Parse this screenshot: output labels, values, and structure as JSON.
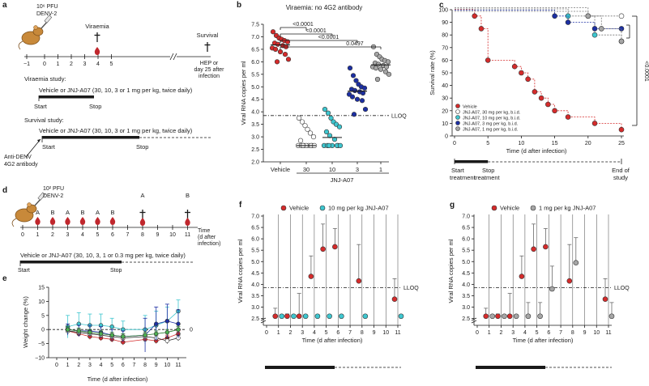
{
  "panel_labels": {
    "a": "a",
    "b": "b",
    "c": "c",
    "d": "d",
    "e": "e",
    "f": "f",
    "g": "g"
  },
  "colors": {
    "vehicle": "#d52b2b",
    "dose30": "#ffffff",
    "dose10": "#3ec6cf",
    "dose3": "#1c2fa3",
    "dose1": "#a6a6a6",
    "mouse": "#c8893a",
    "drop": "#c0272d"
  },
  "panel_a": {
    "inoculum": [
      "10⁶ PFU",
      "DENV-2"
    ],
    "viraemia": "Viraemia",
    "survival": "Survival",
    "hep": [
      "HEP or",
      "day 25 after",
      "infection"
    ],
    "ticks": [
      "−1",
      "0",
      "1",
      "2",
      "3",
      "4",
      "5"
    ],
    "viraemia_study": "Viraemia study:",
    "viraemia_treatment": "Vehicle or JNJ-A07 (30, 10, 3 or 1 mg per kg, twice daily)",
    "survival_study": "Survival study:",
    "survival_treatment": "Vehicle or JNJ-A07 (30, 10, 3 or 1 mg per kg, twice daily)",
    "start": "Start",
    "stop": "Stop",
    "antibody": [
      "Anti-DENV",
      "4G2 antibody"
    ]
  },
  "panel_d": {
    "inoculum": [
      "10² PFU",
      "DENV-2"
    ],
    "schedule": [
      "A",
      "B",
      "A",
      "B",
      "A",
      "B"
    ],
    "late": [
      "A",
      "B"
    ],
    "ticks": [
      "0",
      "1",
      "2",
      "3",
      "4",
      "5",
      "6",
      "7",
      "8",
      "9",
      "10",
      "11"
    ],
    "time_label": [
      "Time",
      "(d after",
      "infection)"
    ],
    "treatment": "Vehicle or JNJ-A07 (30, 10, 3, 1 or 0.3 mg per kg, twice daily)",
    "start": "Start",
    "stop": "Stop"
  },
  "chart_data": [
    {
      "id": "b",
      "type": "scatter",
      "title": "Viraemia: no 4G2 antibody",
      "ylabel": "Viral RNA copies per ml",
      "ylim": [
        2.0,
        7.5
      ],
      "yticks": [
        "2.0",
        "2.5",
        "3.0",
        "3.5",
        "4.0",
        "4.5",
        "5.0",
        "5.5",
        "6.0",
        "6.5",
        "7.0",
        "7.5"
      ],
      "lloq": 3.85,
      "lloq_label": "LLOQ",
      "xlabel": "JNJ-A07",
      "categories": [
        "Vehicle",
        "30",
        "10",
        "3",
        "1"
      ],
      "pvalues": [
        "<0.0001",
        "<0.0001",
        "<0.0001",
        "0.0497"
      ],
      "series": [
        {
          "values": [
            7.2,
            7.05,
            6.95,
            6.9,
            6.85,
            6.8,
            6.75,
            6.7,
            6.65,
            6.6,
            6.55,
            6.5,
            6.4,
            6.3,
            6.1,
            6.0
          ]
        },
        {
          "values": [
            3.75,
            3.6,
            3.45,
            3.3,
            3.15,
            3.0,
            2.85,
            2.65,
            2.65,
            2.65,
            2.65,
            2.65,
            2.65,
            2.65,
            2.65,
            2.65
          ]
        },
        {
          "values": [
            4.1,
            3.95,
            3.75,
            3.6,
            3.5,
            3.4,
            3.2,
            3.05,
            2.9,
            2.65,
            2.65,
            2.65,
            2.65,
            2.65,
            2.65,
            2.65
          ]
        },
        {
          "values": [
            5.75,
            5.45,
            5.25,
            5.1,
            5.0,
            4.95,
            4.9,
            4.85,
            4.8,
            4.75,
            4.7,
            4.6,
            4.5,
            4.45,
            4.1,
            3.9
          ]
        },
        {
          "values": [
            6.6,
            6.3,
            6.2,
            6.1,
            6.05,
            6.0,
            5.95,
            5.9,
            5.85,
            5.8,
            5.8,
            5.75,
            5.7,
            5.6,
            5.5,
            5.3
          ]
        }
      ]
    },
    {
      "id": "c",
      "type": "line",
      "xlabel": "Time (d after infection)",
      "ylabel": "Survival rate (%)",
      "xlim": [
        0,
        25
      ],
      "ylim": [
        0,
        100
      ],
      "xticks": [
        "0",
        "5",
        "10",
        "15",
        "20",
        "25"
      ],
      "yticks": [
        "0",
        "10",
        "20",
        "30",
        "40",
        "50",
        "60",
        "70",
        "80",
        "90",
        "100"
      ],
      "pvalue": "<0.0001",
      "start_label": [
        "Start",
        "treatment"
      ],
      "stop_label": [
        "Stop",
        "treatment"
      ],
      "end_label": [
        "End of",
        "study"
      ],
      "series": [
        {
          "name": "Vehicle",
          "x": [
            0,
            3,
            4,
            5,
            9,
            10,
            11,
            12,
            13,
            14,
            15,
            17,
            21,
            25
          ],
          "y": [
            100,
            95,
            85,
            60,
            55,
            50,
            45,
            35,
            30,
            25,
            20,
            15,
            10,
            5
          ]
        },
        {
          "name": "JNJ-A07, 30 mg per kg, b.i.d.",
          "x": [
            0,
            20,
            25
          ],
          "y": [
            100,
            95,
            95
          ]
        },
        {
          "name": "JNJ-A07, 10 mg per kg, b.i.d.",
          "x": [
            0,
            17,
            21,
            25
          ],
          "y": [
            100,
            95,
            80,
            75
          ]
        },
        {
          "name": "JNJ-A07, 3 mg per kg, b.i.d.",
          "x": [
            0,
            15,
            17,
            21,
            25
          ],
          "y": [
            100,
            95,
            90,
            85,
            85
          ]
        },
        {
          "name": "JNJ-A07, 1 mg per kg, b.i.d.",
          "x": [
            0,
            20,
            22,
            25
          ],
          "y": [
            100,
            95,
            85,
            75
          ]
        }
      ]
    },
    {
      "id": "e",
      "type": "line",
      "xlabel": "Time (d after infection)",
      "ylabel": "Weight change (%)",
      "xlim": [
        0,
        11
      ],
      "ylim": [
        -10,
        15
      ],
      "xticks": [
        "0",
        "1",
        "2",
        "3",
        "4",
        "5",
        "6",
        "7",
        "8",
        "9",
        "10",
        "11"
      ],
      "yticks": [
        "−10",
        "−5",
        "0",
        "5",
        "10",
        "15"
      ],
      "ref_label": "0",
      "series": [
        {
          "x": [
            1,
            2,
            3,
            4,
            5,
            6,
            8,
            9,
            10,
            11
          ],
          "y": [
            -0.5,
            -1.5,
            -2.5,
            -3,
            -3.5,
            -4.5,
            -3.5,
            -4,
            -3,
            -1.5
          ],
          "err": [
            1,
            1,
            1,
            1,
            1,
            1,
            1,
            1,
            1,
            1
          ]
        },
        {
          "x": [
            1,
            2,
            3,
            4,
            5,
            6,
            8,
            9,
            10,
            11
          ],
          "y": [
            -0.5,
            -1,
            -1.5,
            -2,
            -2.5,
            -3,
            -2.5,
            -3,
            -4,
            -3
          ],
          "err": [
            1,
            1,
            1,
            1,
            1,
            1,
            1,
            1,
            1,
            1
          ]
        },
        {
          "x": [
            1,
            2,
            3,
            4,
            5,
            6,
            8,
            9,
            10,
            11
          ],
          "y": [
            1,
            2,
            1.5,
            1.5,
            1,
            0,
            0,
            1.5,
            3,
            6.5
          ],
          "err": [
            4,
            4,
            4,
            4,
            3,
            3,
            5,
            5,
            5,
            4
          ]
        },
        {
          "x": [
            1,
            2,
            3,
            4,
            5,
            6,
            8,
            9,
            10,
            11
          ],
          "y": [
            0,
            -0.5,
            -0.5,
            -1,
            -2,
            -2.5,
            -2,
            2,
            3,
            2
          ],
          "err": [
            2,
            2,
            2,
            2,
            2,
            2,
            6,
            6,
            6,
            5
          ]
        },
        {
          "x": [
            1,
            2,
            3,
            4,
            5,
            6,
            8,
            9,
            10,
            11
          ],
          "y": [
            0,
            -0.5,
            -1,
            -1.5,
            -2,
            -2.5,
            -2,
            -1.5,
            -1,
            0
          ],
          "err": [
            1,
            1,
            1,
            1,
            1,
            1,
            1,
            1,
            1,
            1
          ]
        }
      ]
    },
    {
      "id": "f",
      "type": "scatter",
      "xlabel": "Time (d after infection)",
      "ylabel": "Viral RNA copies per ml",
      "xlim": [
        0,
        11
      ],
      "ylim": [
        2.0,
        7.0
      ],
      "xticks": [
        "0",
        "1",
        "2",
        "3",
        "4",
        "5",
        "6",
        "7",
        "8",
        "9",
        "10",
        "11"
      ],
      "yticks": [
        "2.5",
        "3.0",
        "3.5",
        "4.0",
        "4.5",
        "5.0",
        "5.5",
        "6.0",
        "6.5",
        "7.0"
      ],
      "lloq": 3.85,
      "lloq_label": "LLOQ",
      "series": [
        {
          "name": "Vehicle",
          "x": [
            1,
            2,
            3,
            4,
            5,
            6,
            8,
            11
          ],
          "y": [
            2.6,
            2.6,
            2.6,
            4.35,
            5.55,
            5.65,
            4.15,
            3.35
          ],
          "err": [
            0.35,
            0.1,
            1.0,
            0.9,
            1.1,
            0.8,
            1.6,
            0.9
          ]
        },
        {
          "name": "10 mg per kg JNJ-A07",
          "x": [
            1,
            2,
            3,
            4,
            5,
            6,
            8,
            11
          ],
          "y": [
            2.6,
            2.6,
            2.6,
            2.6,
            2.6,
            2.6,
            2.6,
            2.6
          ],
          "err": [
            0,
            0,
            0,
            0,
            0,
            0,
            0,
            0
          ]
        }
      ]
    },
    {
      "id": "g",
      "type": "scatter",
      "xlabel": "Time (d after infection)",
      "ylabel": "Viral RNA copies per ml",
      "xlim": [
        0,
        11
      ],
      "ylim": [
        2.0,
        7.0
      ],
      "xticks": [
        "0",
        "1",
        "2",
        "3",
        "4",
        "5",
        "6",
        "7",
        "8",
        "9",
        "10",
        "11"
      ],
      "yticks": [
        "2.5",
        "3.0",
        "3.5",
        "4.0",
        "4.5",
        "5.0",
        "5.5",
        "6.0",
        "6.5",
        "7.0"
      ],
      "lloq": 3.85,
      "lloq_label": "LLOQ",
      "series": [
        {
          "name": "Vehicle",
          "x": [
            1,
            2,
            3,
            4,
            5,
            6,
            8,
            11
          ],
          "y": [
            2.6,
            2.6,
            2.6,
            4.35,
            5.55,
            5.65,
            4.15,
            3.35
          ],
          "err": [
            0.35,
            0.1,
            1.0,
            0.9,
            1.1,
            0.8,
            1.6,
            0.9
          ]
        },
        {
          "name": "1 mg per kg JNJ-A07",
          "x": [
            1,
            2,
            3,
            4,
            5,
            6,
            8,
            11
          ],
          "y": [
            2.6,
            2.6,
            2.6,
            2.6,
            2.6,
            3.8,
            4.95,
            2.6
          ],
          "err": [
            0,
            0,
            0,
            0.6,
            0.6,
            1.0,
            1.1,
            0.6
          ]
        }
      ]
    }
  ]
}
